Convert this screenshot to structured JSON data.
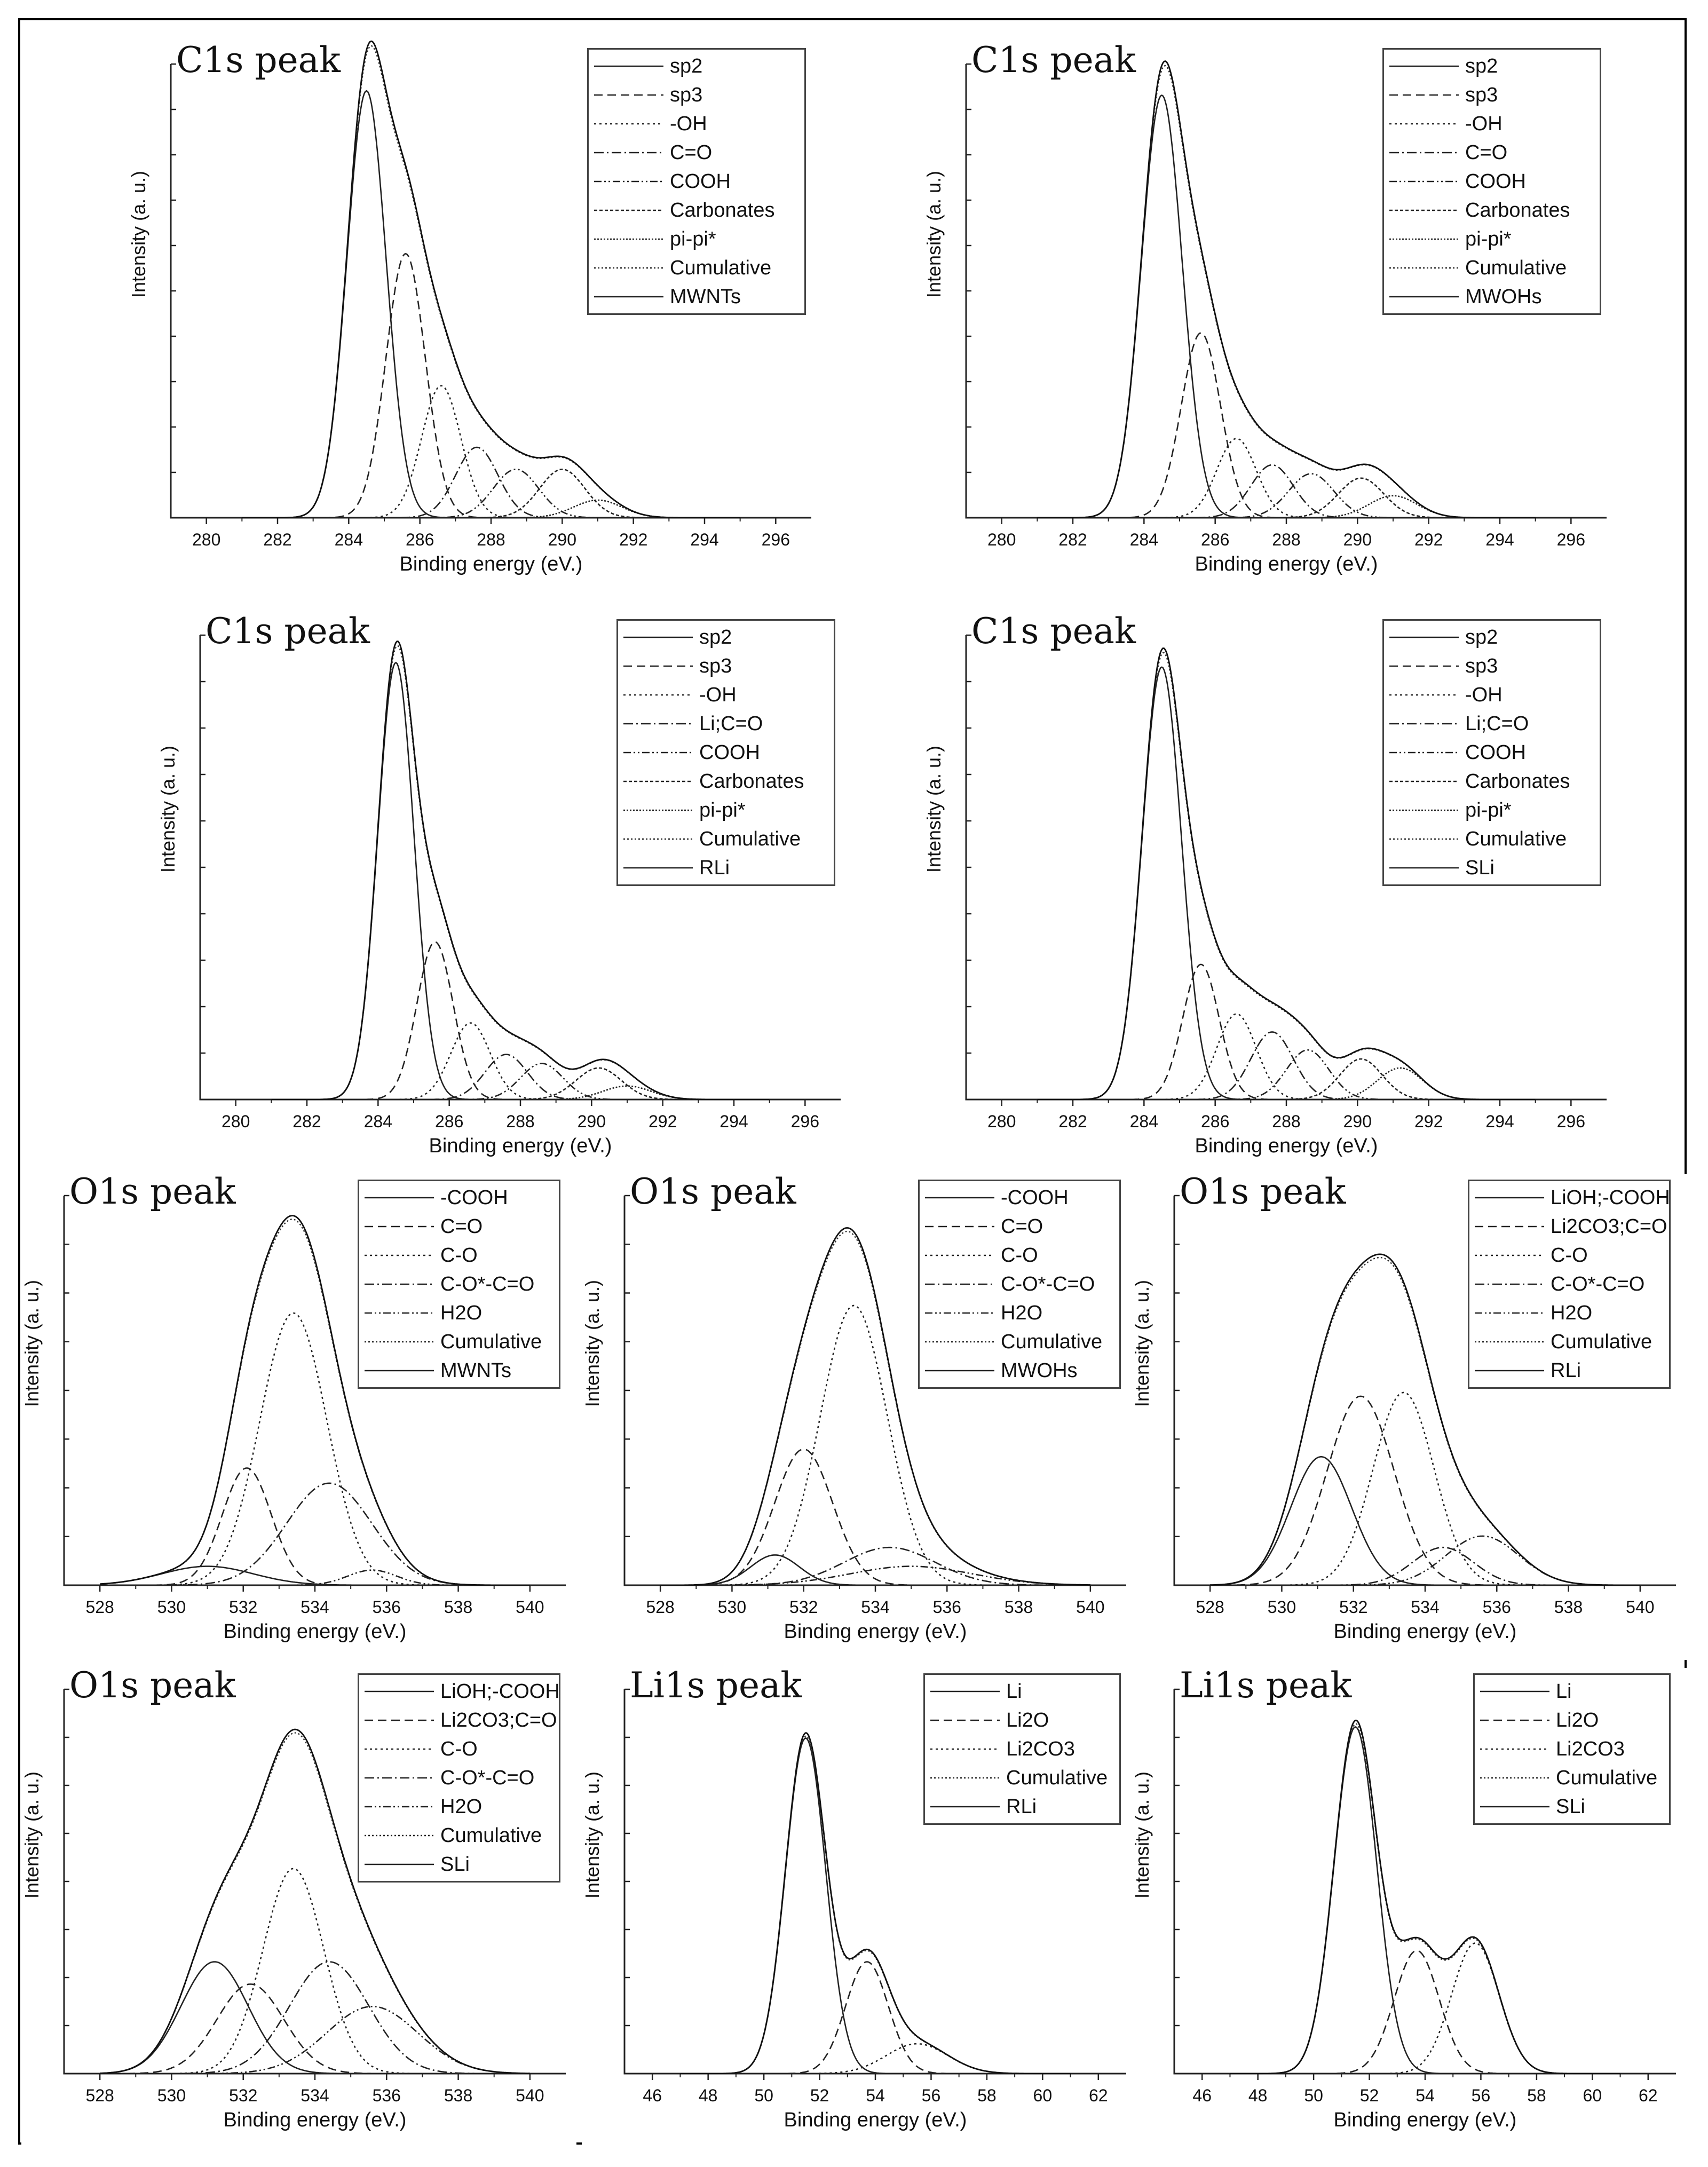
{
  "chart_data": [
    {
      "type": "line",
      "title": "C1s peak",
      "xlabel": "Binding energy (eV.)",
      "ylabel": "Intensity (a. u.)",
      "xlim": [
        279,
        297
      ],
      "xticks": [
        280,
        282,
        284,
        286,
        288,
        290,
        292,
        294,
        296
      ],
      "ylim": [
        0,
        1.0
      ],
      "yticks": 10,
      "x_range_plotted": [
        281,
        295
      ],
      "legend_position": "top-right",
      "legend": [
        "sp2",
        "sp3",
        "-OH",
        "C=O",
        "COOH",
        "Carbonates",
        "pi-pi*",
        "Cumulative",
        "MWNTs"
      ],
      "components": [
        {
          "name": "sp2",
          "center": 284.5,
          "amplitude": 0.97,
          "fwhm": 1.3
        },
        {
          "name": "sp3",
          "center": 285.6,
          "amplitude": 0.6,
          "fwhm": 1.3
        },
        {
          "name": "-OH",
          "center": 286.6,
          "amplitude": 0.3,
          "fwhm": 1.3
        },
        {
          "name": "C=O",
          "center": 287.6,
          "amplitude": 0.16,
          "fwhm": 1.4
        },
        {
          "name": "COOH",
          "center": 288.7,
          "amplitude": 0.11,
          "fwhm": 1.5
        },
        {
          "name": "Carbonates",
          "center": 290.0,
          "amplitude": 0.11,
          "fwhm": 1.5
        },
        {
          "name": "pi-pi*",
          "center": 291.0,
          "amplitude": 0.04,
          "fwhm": 1.6
        }
      ]
    },
    {
      "type": "line",
      "title": "C1s peak",
      "xlabel": "Binding energy (eV.)",
      "ylabel": "Intensity (a. u.)",
      "xlim": [
        279,
        297
      ],
      "xticks": [
        280,
        282,
        284,
        286,
        288,
        290,
        292,
        294,
        296
      ],
      "ylim": [
        0,
        1.0
      ],
      "yticks": 10,
      "x_range_plotted": [
        281,
        295
      ],
      "legend_position": "top-right",
      "legend": [
        "sp2",
        "sp3",
        "-OH",
        "C=O",
        "COOH",
        "Carbonates",
        "pi-pi*",
        "Cumulative",
        "MWOHs"
      ],
      "components": [
        {
          "name": "sp2",
          "center": 284.5,
          "amplitude": 0.96,
          "fwhm": 1.35
        },
        {
          "name": "sp3",
          "center": 285.6,
          "amplitude": 0.42,
          "fwhm": 1.3
        },
        {
          "name": "-OH",
          "center": 286.6,
          "amplitude": 0.18,
          "fwhm": 1.3
        },
        {
          "name": "C=O",
          "center": 287.6,
          "amplitude": 0.12,
          "fwhm": 1.4
        },
        {
          "name": "COOH",
          "center": 288.7,
          "amplitude": 0.1,
          "fwhm": 1.5
        },
        {
          "name": "Carbonates",
          "center": 290.1,
          "amplitude": 0.09,
          "fwhm": 1.5
        },
        {
          "name": "pi-pi*",
          "center": 291.0,
          "amplitude": 0.05,
          "fwhm": 1.6
        }
      ]
    },
    {
      "type": "line",
      "title": "C1s peak",
      "xlabel": "Binding energy (eV.)",
      "ylabel": "Intensity (a. u.)",
      "xlim": [
        279,
        297
      ],
      "xticks": [
        280,
        282,
        284,
        286,
        288,
        290,
        292,
        294,
        296
      ],
      "ylim": [
        0,
        1.0
      ],
      "yticks": 10,
      "x_range_plotted": [
        281,
        295
      ],
      "legend_position": "top-right",
      "legend": [
        "sp2",
        "sp3",
        "-OH",
        "Li;C=O",
        "COOH",
        "Carbonates",
        "pi-pi*",
        "Cumulative",
        "RLi"
      ],
      "components": [
        {
          "name": "sp2",
          "center": 284.5,
          "amplitude": 0.97,
          "fwhm": 1.2
        },
        {
          "name": "sp3",
          "center": 285.6,
          "amplitude": 0.35,
          "fwhm": 1.2
        },
        {
          "name": "-OH",
          "center": 286.6,
          "amplitude": 0.17,
          "fwhm": 1.3
        },
        {
          "name": "Li;C=O",
          "center": 287.6,
          "amplitude": 0.1,
          "fwhm": 1.4
        },
        {
          "name": "COOH",
          "center": 288.6,
          "amplitude": 0.08,
          "fwhm": 1.4
        },
        {
          "name": "Carbonates",
          "center": 290.2,
          "amplitude": 0.07,
          "fwhm": 1.5
        },
        {
          "name": "pi-pi*",
          "center": 291.0,
          "amplitude": 0.03,
          "fwhm": 1.6
        }
      ]
    },
    {
      "type": "line",
      "title": "C1s peak",
      "xlabel": "Binding energy (eV.)",
      "ylabel": "Intensity (a. u.)",
      "xlim": [
        279,
        297
      ],
      "xticks": [
        280,
        282,
        284,
        286,
        288,
        290,
        292,
        294,
        296
      ],
      "ylim": [
        0,
        1.0
      ],
      "yticks": 10,
      "x_range_plotted": [
        281,
        295
      ],
      "legend_position": "top-right",
      "legend": [
        "sp2",
        "sp3",
        "-OH",
        "Li;C=O",
        "COOH",
        "Carbonates",
        "pi-pi*",
        "Cumulative",
        "SLi"
      ],
      "components": [
        {
          "name": "sp2",
          "center": 284.5,
          "amplitude": 0.96,
          "fwhm": 1.3
        },
        {
          "name": "sp3",
          "center": 285.6,
          "amplitude": 0.3,
          "fwhm": 1.2
        },
        {
          "name": "-OH",
          "center": 286.6,
          "amplitude": 0.19,
          "fwhm": 1.3
        },
        {
          "name": "Li;C=O",
          "center": 287.6,
          "amplitude": 0.15,
          "fwhm": 1.4
        },
        {
          "name": "COOH",
          "center": 288.6,
          "amplitude": 0.11,
          "fwhm": 1.4
        },
        {
          "name": "Carbonates",
          "center": 290.1,
          "amplitude": 0.09,
          "fwhm": 1.4
        },
        {
          "name": "pi-pi*",
          "center": 291.2,
          "amplitude": 0.07,
          "fwhm": 1.5
        }
      ]
    },
    {
      "type": "line",
      "title": "O1s peak",
      "xlabel": "Binding energy (eV.)",
      "ylabel": "Intensity (a. u.)",
      "xlim": [
        527,
        541
      ],
      "xticks": [
        528,
        530,
        532,
        534,
        536,
        538,
        540
      ],
      "ylim": [
        0,
        1.0
      ],
      "yticks": 8,
      "x_range_plotted": [
        528,
        540
      ],
      "legend_position": "top-right",
      "legend": [
        "-COOH",
        "C=O",
        "C-O",
        "C-O*-C=O",
        "H2O",
        "Cumulative",
        "MWNTs"
      ],
      "components": [
        {
          "name": "-COOH",
          "center": 531.0,
          "amplitude": 0.05,
          "fwhm": 3.0
        },
        {
          "name": "C=O",
          "center": 532.1,
          "amplitude": 0.31,
          "fwhm": 1.6
        },
        {
          "name": "C-O",
          "center": 533.4,
          "amplitude": 0.72,
          "fwhm": 2.2
        },
        {
          "name": "C-O*-C=O",
          "center": 534.4,
          "amplitude": 0.27,
          "fwhm": 2.8
        },
        {
          "name": "H2O",
          "center": 535.6,
          "amplitude": 0.04,
          "fwhm": 1.6
        }
      ]
    },
    {
      "type": "line",
      "title": "O1s peak",
      "xlabel": "Binding energy (eV.)",
      "ylabel": "Intensity (a. u.)",
      "xlim": [
        527,
        541
      ],
      "xticks": [
        528,
        530,
        532,
        534,
        536,
        538,
        540
      ],
      "ylim": [
        0,
        1.0
      ],
      "yticks": 8,
      "x_range_plotted": [
        528,
        540
      ],
      "legend_position": "top-right",
      "legend": [
        "-COOH",
        "C=O",
        "C-O",
        "C-O*-C=O",
        "H2O",
        "Cumulative",
        "MWOHs"
      ],
      "components": [
        {
          "name": "-COOH",
          "center": 531.2,
          "amplitude": 0.08,
          "fwhm": 1.6
        },
        {
          "name": "C=O",
          "center": 532.0,
          "amplitude": 0.36,
          "fwhm": 1.9
        },
        {
          "name": "C-O",
          "center": 533.4,
          "amplitude": 0.74,
          "fwhm": 2.2
        },
        {
          "name": "C-O*-C=O",
          "center": 534.4,
          "amplitude": 0.1,
          "fwhm": 3.0
        },
        {
          "name": "H2O",
          "center": 535.0,
          "amplitude": 0.05,
          "fwhm": 4.0
        }
      ]
    },
    {
      "type": "line",
      "title": "O1s peak",
      "xlabel": "Binding energy (eV.)",
      "ylabel": "Intensity (a. u.)",
      "xlim": [
        527,
        541
      ],
      "xticks": [
        528,
        530,
        532,
        534,
        536,
        538,
        540
      ],
      "ylim": [
        0,
        1.0
      ],
      "yticks": 8,
      "x_range_plotted": [
        528,
        540
      ],
      "legend_position": "top-right",
      "legend": [
        "LiOH;-COOH",
        "Li2CO3;C=O",
        "C-O",
        "C-O*-C=O",
        "H2O",
        "Cumulative",
        "RLi"
      ],
      "components": [
        {
          "name": "LiOH;-COOH",
          "center": 531.1,
          "amplitude": 0.34,
          "fwhm": 2.0
        },
        {
          "name": "Li2CO3;C=O",
          "center": 532.2,
          "amplitude": 0.5,
          "fwhm": 2.2
        },
        {
          "name": "C-O",
          "center": 533.4,
          "amplitude": 0.51,
          "fwhm": 2.0
        },
        {
          "name": "C-O*-C=O",
          "center": 534.5,
          "amplitude": 0.1,
          "fwhm": 2.0
        },
        {
          "name": "H2O",
          "center": 535.6,
          "amplitude": 0.13,
          "fwhm": 2.4
        }
      ]
    },
    {
      "type": "line",
      "title": "O1s peak",
      "xlabel": "Binding energy (eV.)",
      "ylabel": "Intensity (a. u.)",
      "xlim": [
        527,
        541
      ],
      "xticks": [
        528,
        530,
        532,
        534,
        536,
        538,
        540
      ],
      "ylim": [
        0,
        1.0
      ],
      "yticks": 8,
      "x_range_plotted": [
        528,
        540
      ],
      "legend_position": "top-right",
      "legend": [
        "LiOH;-COOH",
        "Li2CO3;C=O",
        "C-O",
        "C-O*-C=O",
        "H2O",
        "Cumulative",
        "SLi"
      ],
      "components": [
        {
          "name": "LiOH;-COOH",
          "center": 531.2,
          "amplitude": 0.3,
          "fwhm": 2.2
        },
        {
          "name": "Li2CO3;C=O",
          "center": 532.2,
          "amplitude": 0.24,
          "fwhm": 2.2
        },
        {
          "name": "C-O",
          "center": 533.4,
          "amplitude": 0.55,
          "fwhm": 2.0
        },
        {
          "name": "C-O*-C=O",
          "center": 534.4,
          "amplitude": 0.3,
          "fwhm": 2.6
        },
        {
          "name": "H2O",
          "center": 535.6,
          "amplitude": 0.18,
          "fwhm": 3.0
        }
      ]
    },
    {
      "type": "line",
      "title": "Li1s peak",
      "xlabel": "Binding energy (eV.)",
      "ylabel": "Intensity (a. u.)",
      "xlim": [
        45,
        63
      ],
      "xticks": [
        46,
        48,
        50,
        52,
        54,
        56,
        58,
        60,
        62
      ],
      "ylim": [
        0,
        1.0
      ],
      "yticks": 8,
      "x_range_plotted": [
        47,
        61
      ],
      "legend_position": "top-right",
      "legend": [
        "Li",
        "Li2O",
        "Li2CO3",
        "Cumulative",
        "RLi"
      ],
      "components": [
        {
          "name": "Li",
          "center": 51.5,
          "amplitude": 0.9,
          "fwhm": 1.7
        },
        {
          "name": "Li2O",
          "center": 53.7,
          "amplitude": 0.3,
          "fwhm": 1.8
        },
        {
          "name": "Li2CO3",
          "center": 55.5,
          "amplitude": 0.08,
          "fwhm": 2.6
        }
      ]
    },
    {
      "type": "line",
      "title": "Li1s peak",
      "xlabel": "Binding energy (eV.)",
      "ylabel": "Intensity (a. u.)",
      "xlim": [
        45,
        63
      ],
      "xticks": [
        46,
        48,
        50,
        52,
        54,
        56,
        58,
        60,
        62
      ],
      "ylim": [
        0,
        1.0
      ],
      "yticks": 8,
      "x_range_plotted": [
        47,
        61
      ],
      "legend_position": "top-right",
      "legend": [
        "Li",
        "Li2O",
        "Li2CO3",
        "Cumulative",
        "SLi"
      ],
      "components": [
        {
          "name": "Li",
          "center": 51.5,
          "amplitude": 0.93,
          "fwhm": 1.8
        },
        {
          "name": "Li2O",
          "center": 53.7,
          "amplitude": 0.33,
          "fwhm": 1.9
        },
        {
          "name": "Li2CO3",
          "center": 55.8,
          "amplitude": 0.35,
          "fwhm": 2.0
        }
      ]
    }
  ]
}
